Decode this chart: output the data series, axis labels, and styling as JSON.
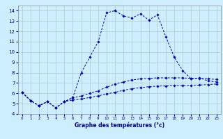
{
  "title": "Graphe des températures (°c)",
  "background_color": "#cceeff",
  "grid_color": "#aacccc",
  "line_color": "#0000bb",
  "xlim": [
    -0.5,
    23.5
  ],
  "ylim": [
    4,
    14.5
  ],
  "xticks": [
    0,
    1,
    2,
    3,
    4,
    5,
    6,
    7,
    8,
    9,
    10,
    11,
    12,
    13,
    14,
    15,
    16,
    17,
    18,
    19,
    20,
    21,
    22,
    23
  ],
  "yticks": [
    4,
    5,
    6,
    7,
    8,
    9,
    10,
    11,
    12,
    13,
    14
  ],
  "line1_x": [
    0,
    1,
    2,
    3,
    4,
    5,
    6,
    7,
    8,
    9,
    10,
    11,
    12,
    13,
    14,
    15,
    16,
    17,
    18,
    19,
    20,
    21,
    22,
    23
  ],
  "line1_y": [
    6.1,
    5.3,
    4.8,
    5.2,
    4.6,
    5.2,
    5.6,
    8.0,
    9.5,
    11.0,
    13.8,
    14.0,
    13.5,
    13.3,
    13.7,
    13.1,
    13.6,
    11.5,
    9.5,
    8.2,
    7.4,
    7.5,
    7.2,
    7.1
  ],
  "line2_x": [
    0,
    1,
    2,
    3,
    4,
    5,
    6,
    7,
    8,
    9,
    10,
    11,
    12,
    13,
    14,
    15,
    16,
    17,
    18,
    19,
    20,
    21,
    22,
    23
  ],
  "line2_y": [
    6.1,
    5.3,
    4.8,
    5.2,
    4.6,
    5.2,
    5.55,
    5.75,
    6.0,
    6.25,
    6.6,
    6.9,
    7.1,
    7.3,
    7.4,
    7.45,
    7.5,
    7.5,
    7.5,
    7.5,
    7.45,
    7.45,
    7.4,
    7.35
  ],
  "line3_x": [
    0,
    1,
    2,
    3,
    4,
    5,
    6,
    7,
    8,
    9,
    10,
    11,
    12,
    13,
    14,
    15,
    16,
    17,
    18,
    19,
    20,
    21,
    22,
    23
  ],
  "line3_y": [
    6.1,
    5.3,
    4.8,
    5.2,
    4.6,
    5.2,
    5.35,
    5.45,
    5.6,
    5.75,
    5.95,
    6.1,
    6.3,
    6.45,
    6.55,
    6.65,
    6.7,
    6.72,
    6.75,
    6.75,
    6.75,
    6.8,
    6.85,
    6.9
  ]
}
